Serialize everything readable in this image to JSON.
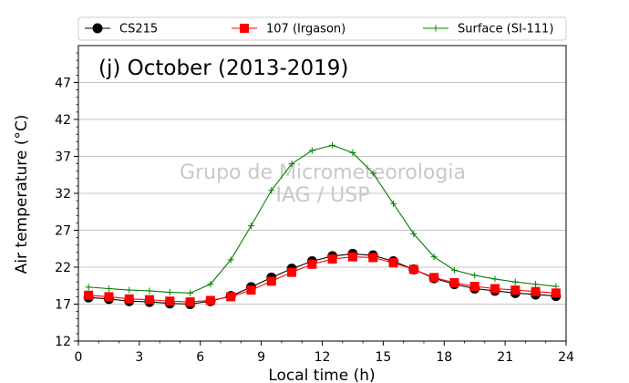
{
  "chart_data": {
    "type": "line",
    "title": "(j) October (2013-2019)",
    "watermark": [
      "Grupo de Micrometeorologia",
      "IAG / USP"
    ],
    "xlabel": "Local time (h)",
    "ylabel": "Air temperature (°C)",
    "xlim": [
      0,
      24
    ],
    "ylim": [
      12,
      52
    ],
    "xticks": [
      0,
      3,
      6,
      9,
      12,
      15,
      18,
      21,
      24
    ],
    "yticks": [
      12,
      17,
      22,
      27,
      32,
      37,
      42,
      47
    ],
    "grid": "horizontal",
    "legend_position": "top, above plot",
    "x": [
      0.5,
      1.5,
      2.5,
      3.5,
      4.5,
      5.5,
      6.5,
      7.5,
      8.5,
      9.5,
      10.5,
      11.5,
      12.5,
      13.5,
      14.5,
      15.5,
      16.5,
      17.5,
      18.5,
      19.5,
      20.5,
      21.5,
      22.5,
      23.5
    ],
    "series": [
      {
        "name": "CS215",
        "color": "#000000",
        "marker": "circle",
        "values": [
          17.9,
          17.7,
          17.4,
          17.3,
          17.1,
          17.0,
          17.4,
          18.1,
          19.3,
          20.6,
          21.8,
          22.8,
          23.5,
          23.8,
          23.6,
          22.8,
          21.7,
          20.5,
          19.7,
          19.1,
          18.8,
          18.5,
          18.3,
          18.1
        ]
      },
      {
        "name": "107 (Irgason)",
        "color": "#ff0000",
        "marker": "square",
        "values": [
          18.2,
          18.0,
          17.7,
          17.6,
          17.4,
          17.3,
          17.5,
          18.0,
          18.9,
          20.1,
          21.3,
          22.4,
          23.1,
          23.4,
          23.3,
          22.6,
          21.7,
          20.6,
          19.9,
          19.4,
          19.1,
          18.9,
          18.7,
          18.5
        ]
      },
      {
        "name": "Surface (SI-111)",
        "color": "#008000",
        "marker": "plus",
        "values": [
          19.3,
          19.1,
          18.9,
          18.8,
          18.6,
          18.5,
          19.7,
          23.0,
          27.6,
          32.4,
          36.0,
          37.8,
          38.5,
          37.5,
          34.7,
          30.6,
          26.5,
          23.4,
          21.6,
          20.9,
          20.4,
          20.0,
          19.7,
          19.4
        ]
      }
    ]
  }
}
